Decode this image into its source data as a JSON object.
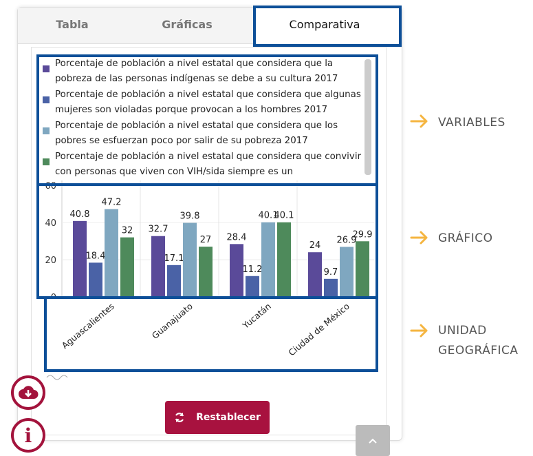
{
  "tabs": [
    "Tabla",
    "Gráficas",
    "Comparativa"
  ],
  "chart_data": {
    "type": "bar",
    "categories": [
      "Aguascalientes",
      "Guanajuato",
      "Yucatán",
      "Ciudad de México"
    ],
    "series": [
      {
        "name": "Porcentaje de población a nivel estatal que considera que la pobreza de las personas indígenas se debe a su cultura 2017",
        "color": "#5a4a99",
        "values": [
          40.8,
          32.7,
          28.4,
          24
        ]
      },
      {
        "name": "Porcentaje de población a nivel estatal que considera que algunas mujeres son violadas porque provocan a los hombres 2017",
        "color": "#4a62a6",
        "values": [
          18.4,
          17.1,
          11.2,
          9.7
        ]
      },
      {
        "name": "Porcentaje de población a nivel estatal que considera que los pobres se esfuerzan poco por salir de su pobreza 2017",
        "color": "#7fa7c0",
        "values": [
          47.2,
          39.8,
          40.1,
          26.9
        ]
      },
      {
        "name": "Porcentaje de población a nivel estatal que considera que convivir con personas que viven con VIH/sida siempre es un",
        "color": "#4e8a5b",
        "values": [
          32,
          27,
          40.1,
          29.9
        ]
      }
    ],
    "ylim": [
      0,
      60
    ],
    "yticks": [
      0,
      20,
      40,
      60
    ],
    "grid": true
  },
  "reset_button": "Restablecer",
  "annotations": [
    "VARIABLES",
    "GRÁFICO",
    "UNIDAD GEOGRÁFICA"
  ]
}
